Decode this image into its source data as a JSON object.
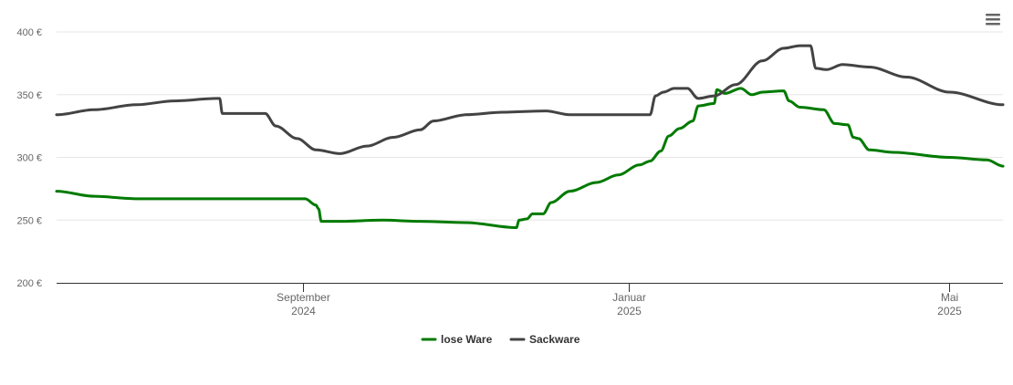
{
  "chart_data": {
    "type": "line",
    "title": "",
    "xlabel": "",
    "ylabel": "",
    "ylim": [
      200,
      400
    ],
    "y_ticks": [
      "200 €",
      "250 €",
      "300 €",
      "350 €",
      "400 €"
    ],
    "x_ticks": [
      {
        "month": "September",
        "year": "2024",
        "date": "2024-09-01"
      },
      {
        "month": "Januar",
        "year": "2025",
        "date": "2025-01-01"
      },
      {
        "month": "Mai",
        "year": "2025",
        "date": "2025-05-01"
      }
    ],
    "xlim": [
      "2024-06-01",
      "2025-05-21"
    ],
    "grid": true,
    "legend": "bottom-center",
    "series": [
      {
        "name": "lose Ware",
        "color": "#007a00",
        "points": [
          [
            "2024-06-01",
            273
          ],
          [
            "2024-06-15",
            269
          ],
          [
            "2024-07-01",
            267
          ],
          [
            "2024-08-01",
            267
          ],
          [
            "2024-08-31",
            267
          ],
          [
            "2024-09-02",
            267
          ],
          [
            "2024-09-06",
            262
          ],
          [
            "2024-09-07",
            259
          ],
          [
            "2024-09-08",
            249
          ],
          [
            "2024-09-15",
            249
          ],
          [
            "2024-10-01",
            250
          ],
          [
            "2024-10-15",
            249
          ],
          [
            "2024-11-01",
            248
          ],
          [
            "2024-11-20",
            244
          ],
          [
            "2024-11-21",
            250
          ],
          [
            "2024-11-24",
            251
          ],
          [
            "2024-11-26",
            255
          ],
          [
            "2024-11-30",
            255
          ],
          [
            "2024-12-03",
            264
          ],
          [
            "2024-12-10",
            273
          ],
          [
            "2024-12-20",
            280
          ],
          [
            "2024-12-28",
            286
          ],
          [
            "2025-01-05",
            294
          ],
          [
            "2025-01-09",
            297
          ],
          [
            "2025-01-13",
            305
          ],
          [
            "2025-01-16",
            317
          ],
          [
            "2025-01-20",
            323
          ],
          [
            "2025-01-25",
            329
          ],
          [
            "2025-01-27",
            341
          ],
          [
            "2025-02-02",
            343
          ],
          [
            "2025-02-03",
            354
          ],
          [
            "2025-02-06",
            351
          ],
          [
            "2025-02-12",
            355
          ],
          [
            "2025-02-16",
            350
          ],
          [
            "2025-02-20",
            352
          ],
          [
            "2025-02-28",
            353
          ],
          [
            "2025-03-02",
            345
          ],
          [
            "2025-03-06",
            340
          ],
          [
            "2025-03-15",
            338
          ],
          [
            "2025-03-19",
            327
          ],
          [
            "2025-03-24",
            326
          ],
          [
            "2025-03-26",
            316
          ],
          [
            "2025-03-28",
            315
          ],
          [
            "2025-04-01",
            306
          ],
          [
            "2025-04-10",
            304
          ],
          [
            "2025-05-01",
            300
          ],
          [
            "2025-05-15",
            298
          ],
          [
            "2025-05-21",
            293
          ]
        ]
      },
      {
        "name": "Sackware",
        "color": "#434343",
        "points": [
          [
            "2024-06-01",
            334
          ],
          [
            "2024-06-15",
            338
          ],
          [
            "2024-07-01",
            342
          ],
          [
            "2024-07-15",
            345
          ],
          [
            "2024-07-31",
            347
          ],
          [
            "2024-08-01",
            347
          ],
          [
            "2024-08-02",
            335
          ],
          [
            "2024-08-18",
            335
          ],
          [
            "2024-08-22",
            325
          ],
          [
            "2024-08-30",
            315
          ],
          [
            "2024-09-06",
            306
          ],
          [
            "2024-09-15",
            303
          ],
          [
            "2024-09-25",
            309
          ],
          [
            "2024-10-05",
            316
          ],
          [
            "2024-10-15",
            322
          ],
          [
            "2024-10-20",
            329
          ],
          [
            "2024-11-01",
            334
          ],
          [
            "2024-11-15",
            336
          ],
          [
            "2024-12-01",
            337
          ],
          [
            "2024-12-10",
            334
          ],
          [
            "2025-01-01",
            334
          ],
          [
            "2025-01-09",
            334
          ],
          [
            "2025-01-11",
            349
          ],
          [
            "2025-01-14",
            352
          ],
          [
            "2025-01-18",
            355
          ],
          [
            "2025-01-23",
            355
          ],
          [
            "2025-01-27",
            347
          ],
          [
            "2025-02-02",
            349
          ],
          [
            "2025-02-10",
            358
          ],
          [
            "2025-02-20",
            377
          ],
          [
            "2025-02-28",
            387
          ],
          [
            "2025-03-06",
            389
          ],
          [
            "2025-03-10",
            389
          ],
          [
            "2025-03-12",
            371
          ],
          [
            "2025-03-16",
            370
          ],
          [
            "2025-03-22",
            374
          ],
          [
            "2025-04-01",
            372
          ],
          [
            "2025-04-15",
            364
          ],
          [
            "2025-05-01",
            352
          ],
          [
            "2025-05-21",
            342
          ]
        ]
      }
    ]
  }
}
